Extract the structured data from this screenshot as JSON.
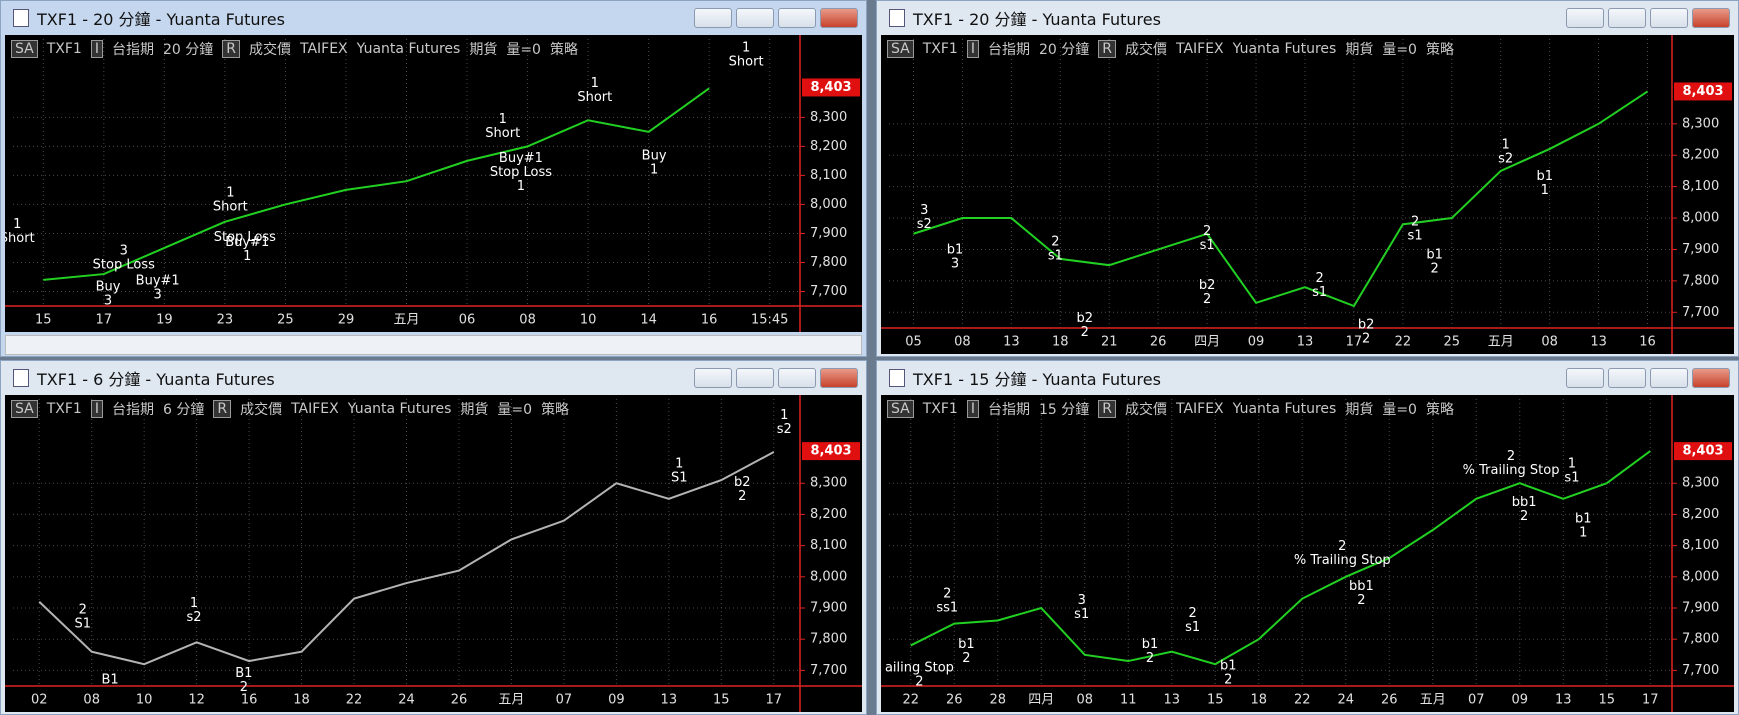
{
  "windows": [
    {
      "title": "TXF1 - 20 分鐘 - Yuanta Futures",
      "toolbar": [
        "SA",
        "TXF1",
        "I",
        "台指期",
        "20 分鐘",
        "R",
        "成交價",
        "TAIFEX",
        "Yuanta Futures",
        "期貨",
        "量=0",
        "策略"
      ]
    },
    {
      "title": "TXF1 - 20 分鐘 - Yuanta Futures",
      "toolbar": [
        "SA",
        "TXF1",
        "I",
        "台指期",
        "20 分鐘",
        "R",
        "成交價",
        "TAIFEX",
        "Yuanta Futures",
        "期貨",
        "量=0",
        "策略"
      ]
    },
    {
      "title": "TXF1 - 6 分鐘 - Yuanta Futures",
      "toolbar": [
        "SA",
        "TXF1",
        "I",
        "台指期",
        "6 分鐘",
        "R",
        "成交價",
        "TAIFEX",
        "Yuanta Futures",
        "期貨",
        "量=0",
        "策略"
      ]
    },
    {
      "title": "TXF1 - 15 分鐘 - Yuanta Futures",
      "toolbar": [
        "SA",
        "TXF1",
        "I",
        "台指期",
        "15 分鐘",
        "R",
        "成交價",
        "TAIFEX",
        "Yuanta Futures",
        "期貨",
        "量=0",
        "策略"
      ]
    }
  ],
  "chart_data": [
    {
      "type": "line",
      "categories": [
        "15",
        "17",
        "19",
        "23",
        "25",
        "29",
        "五月",
        "06",
        "08",
        "10",
        "14",
        "16",
        "15:45"
      ],
      "series": [
        {
          "color": "#22d022",
          "values": [
            7740,
            7760,
            7850,
            7940,
            8000,
            8050,
            8080,
            8150,
            8200,
            8290,
            8250,
            8400,
            null
          ]
        }
      ],
      "ylim": [
        7650,
        8570
      ],
      "yticks": [
        {
          "value": 7700,
          "label": "7,700"
        },
        {
          "value": 7800,
          "label": "7,800"
        },
        {
          "value": 7900,
          "label": "7,900"
        },
        {
          "value": 8000,
          "label": "8,000"
        },
        {
          "value": 8100,
          "label": "8,100"
        },
        {
          "value": 8200,
          "label": "8,200"
        },
        {
          "value": 8300,
          "label": "8,300"
        }
      ],
      "grid": true,
      "last": {
        "value": 8403,
        "label": "8,403"
      },
      "annotations": [
        {
          "x": -0.43,
          "value": 7930,
          "lines": [
            "1",
            "Short"
          ]
        },
        {
          "x": 1.33,
          "value": 7840,
          "lines": [
            "3",
            "Stop Loss"
          ]
        },
        {
          "x": 1.07,
          "value": 7715,
          "lines": [
            "Buy",
            "3"
          ]
        },
        {
          "x": 1.89,
          "value": 7737,
          "lines": [
            "Buy#1",
            "3"
          ]
        },
        {
          "x": 3.09,
          "value": 8039,
          "lines": [
            "1",
            "Short"
          ]
        },
        {
          "x": 3.33,
          "value": 7886,
          "lines": [
            "Stop Loss"
          ]
        },
        {
          "x": 3.37,
          "value": 7868,
          "lines": [
            "Buy#1",
            "1"
          ]
        },
        {
          "x": 7.59,
          "value": 8293,
          "lines": [
            "1",
            "Short"
          ]
        },
        {
          "x": 7.89,
          "value": 8158,
          "lines": [
            "Buy#1",
            "Stop Loss",
            "1"
          ]
        },
        {
          "x": 9.11,
          "value": 8416,
          "lines": [
            "1",
            "Short"
          ]
        },
        {
          "x": 10.09,
          "value": 8166,
          "lines": [
            "Buy",
            "1"
          ]
        },
        {
          "x": 11.61,
          "value": 8539,
          "lines": [
            "1",
            "Short"
          ]
        }
      ]
    },
    {
      "type": "line",
      "categories": [
        "05",
        "08",
        "13",
        "18",
        "21",
        "26",
        "四月",
        "09",
        "13",
        "17",
        "22",
        "25",
        "五月",
        "08",
        "13",
        "16"
      ],
      "series": [
        {
          "color": "#22d022",
          "values": [
            7950,
            8000,
            8000,
            7870,
            7850,
            7900,
            7950,
            7730,
            7780,
            7720,
            7980,
            8000,
            8150,
            8220,
            8300,
            8403
          ]
        }
      ],
      "ylim": [
        7650,
        8570
      ],
      "yticks": [
        {
          "value": 7700,
          "label": "7,700"
        },
        {
          "value": 7800,
          "label": "7,800"
        },
        {
          "value": 7900,
          "label": "7,900"
        },
        {
          "value": 8000,
          "label": "8,000"
        },
        {
          "value": 8100,
          "label": "8,100"
        },
        {
          "value": 8200,
          "label": "8,200"
        },
        {
          "value": 8300,
          "label": "8,300"
        }
      ],
      "grid": true,
      "last": {
        "value": 8403,
        "label": "8,403"
      },
      "annotations": [
        {
          "x": 0.22,
          "value": 8024,
          "lines": [
            "3",
            "s2"
          ]
        },
        {
          "x": 0.85,
          "value": 7898,
          "lines": [
            "b1",
            "3"
          ]
        },
        {
          "x": 2.9,
          "value": 7924,
          "lines": [
            "2",
            "s1"
          ]
        },
        {
          "x": 3.5,
          "value": 7681,
          "lines": [
            "b2",
            "2"
          ]
        },
        {
          "x": 6.0,
          "value": 7957,
          "lines": [
            "2",
            "s1"
          ]
        },
        {
          "x": 6.0,
          "value": 7786,
          "lines": [
            "b2",
            "2"
          ]
        },
        {
          "x": 8.3,
          "value": 7808,
          "lines": [
            "2",
            "s1"
          ]
        },
        {
          "x": 9.25,
          "value": 7660,
          "lines": [
            "b2",
            "2"
          ]
        },
        {
          "x": 10.25,
          "value": 7987,
          "lines": [
            "2",
            "s1"
          ]
        },
        {
          "x": 10.65,
          "value": 7883,
          "lines": [
            "b1",
            "2"
          ]
        },
        {
          "x": 12.1,
          "value": 8233,
          "lines": [
            "1",
            "s2"
          ]
        },
        {
          "x": 12.9,
          "value": 8132,
          "lines": [
            "b1",
            "1"
          ]
        }
      ]
    },
    {
      "type": "line",
      "categories": [
        "02",
        "08",
        "10",
        "12",
        "16",
        "18",
        "22",
        "24",
        "26",
        "五月",
        "07",
        "09",
        "13",
        "15",
        "17"
      ],
      "series": [
        {
          "color": "#b4b4b4",
          "values": [
            7920,
            7760,
            7720,
            7790,
            7730,
            7760,
            7930,
            7980,
            8020,
            8120,
            8180,
            8300,
            8250,
            8310,
            8400
          ]
        }
      ],
      "ylim": [
        7650,
        8570
      ],
      "yticks": [
        {
          "value": 7700,
          "label": "7,700"
        },
        {
          "value": 7800,
          "label": "7,800"
        },
        {
          "value": 7900,
          "label": "7,900"
        },
        {
          "value": 8000,
          "label": "8,000"
        },
        {
          "value": 8100,
          "label": "8,100"
        },
        {
          "value": 8200,
          "label": "8,200"
        },
        {
          "value": 8300,
          "label": "8,300"
        }
      ],
      "grid": true,
      "last": {
        "value": 8403,
        "label": "8,403"
      },
      "annotations": [
        {
          "x": 0.83,
          "value": 7893,
          "lines": [
            "2",
            "S1"
          ]
        },
        {
          "x": 1.35,
          "value": 7670,
          "lines": [
            "B1"
          ]
        },
        {
          "x": 2.95,
          "value": 7914,
          "lines": [
            "1",
            "s2"
          ]
        },
        {
          "x": 3.9,
          "value": 7690,
          "lines": [
            "B1",
            "2"
          ]
        },
        {
          "x": 12.2,
          "value": 8362,
          "lines": [
            "1",
            "S1"
          ]
        },
        {
          "x": 13.4,
          "value": 8303,
          "lines": [
            "b2",
            "2"
          ]
        },
        {
          "x": 14.2,
          "value": 8517,
          "lines": [
            "1",
            "s2"
          ]
        }
      ]
    },
    {
      "type": "line",
      "categories": [
        "22",
        "26",
        "28",
        "四月",
        "08",
        "11",
        "13",
        "15",
        "18",
        "22",
        "24",
        "26",
        "五月",
        "07",
        "09",
        "13",
        "15",
        "17"
      ],
      "series": [
        {
          "color": "#22d022",
          "values": [
            7780,
            7850,
            7860,
            7900,
            7750,
            7730,
            7760,
            7720,
            7800,
            7930,
            8000,
            8060,
            8150,
            8250,
            8300,
            8250,
            8300,
            8403
          ]
        }
      ],
      "ylim": [
        7650,
        8570
      ],
      "yticks": [
        {
          "value": 7700,
          "label": "7,700"
        },
        {
          "value": 7800,
          "label": "7,800"
        },
        {
          "value": 7900,
          "label": "7,900"
        },
        {
          "value": 8000,
          "label": "8,000"
        },
        {
          "value": 8100,
          "label": "8,100"
        },
        {
          "value": 8200,
          "label": "8,200"
        },
        {
          "value": 8300,
          "label": "8,300"
        }
      ],
      "grid": true,
      "last": {
        "value": 8403,
        "label": "8,403"
      },
      "annotations": [
        {
          "x": 0.2,
          "value": 7707,
          "lines": [
            "ailing Stop",
            "2"
          ]
        },
        {
          "x": 0.84,
          "value": 7945,
          "lines": [
            "2",
            "ss1"
          ]
        },
        {
          "x": 1.28,
          "value": 7783,
          "lines": [
            "b1",
            "2"
          ]
        },
        {
          "x": 3.93,
          "value": 7924,
          "lines": [
            "3",
            "s1"
          ]
        },
        {
          "x": 5.5,
          "value": 7783,
          "lines": [
            "b1",
            "2"
          ]
        },
        {
          "x": 6.48,
          "value": 7883,
          "lines": [
            "2",
            "s1"
          ]
        },
        {
          "x": 7.3,
          "value": 7714,
          "lines": [
            "b1",
            "2"
          ]
        },
        {
          "x": 9.92,
          "value": 8097,
          "lines": [
            "2",
            "% Trailing Stop"
          ]
        },
        {
          "x": 10.36,
          "value": 7969,
          "lines": [
            "bb1",
            "2"
          ]
        },
        {
          "x": 13.8,
          "value": 8386,
          "lines": [
            "2",
            "% Trailing Stop"
          ]
        },
        {
          "x": 14.1,
          "value": 8238,
          "lines": [
            "bb1",
            "2"
          ]
        },
        {
          "x": 15.2,
          "value": 8362,
          "lines": [
            "1",
            "s1"
          ]
        },
        {
          "x": 15.46,
          "value": 8186,
          "lines": [
            "b1",
            "1"
          ]
        }
      ]
    }
  ]
}
